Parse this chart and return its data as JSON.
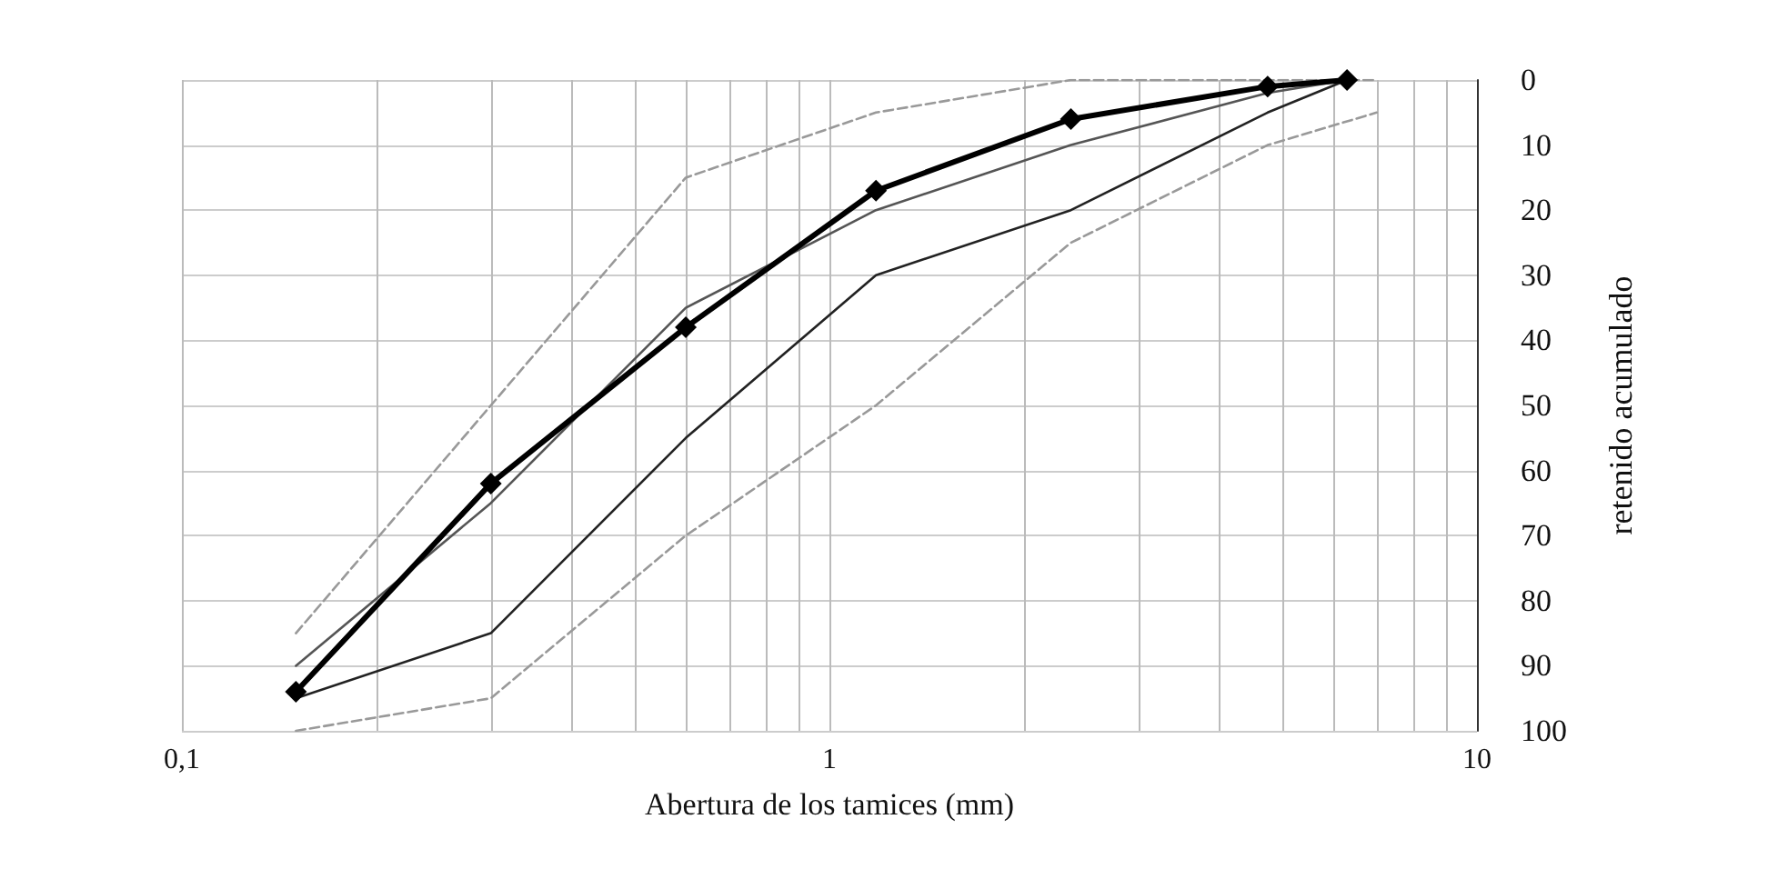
{
  "chart_data": {
    "type": "line",
    "xlabel": "Abertura de los tamices (mm)",
    "ylabel": "retenido acumulado",
    "log": "x",
    "grid": true,
    "xlim": [
      0.1,
      10
    ],
    "xticks": [
      {
        "value": 0.1,
        "label": "0,1"
      },
      {
        "value": 0.2,
        "label": null
      },
      {
        "value": 0.3,
        "label": null
      },
      {
        "value": 0.4,
        "label": null
      },
      {
        "value": 0.5,
        "label": null
      },
      {
        "value": 0.6,
        "label": null
      },
      {
        "value": 0.7,
        "label": null
      },
      {
        "value": 0.8,
        "label": null
      },
      {
        "value": 0.9,
        "label": null
      },
      1,
      {
        "value": 2,
        "label": null
      },
      {
        "value": 3,
        "label": null
      },
      {
        "value": 4,
        "label": null
      },
      {
        "value": 5,
        "label": null
      },
      {
        "value": 6,
        "label": null
      },
      {
        "value": 7,
        "label": null
      },
      {
        "value": 8,
        "label": null
      },
      {
        "value": 9,
        "label": null
      },
      10
    ],
    "ylim": [
      100,
      0
    ],
    "yticks": [
      0,
      10,
      20,
      30,
      40,
      50,
      60,
      70,
      80,
      90,
      100
    ],
    "series": [
      {
        "color": "#999999",
        "line_style": "dashed",
        "marker": "none",
        "x": [
          0.15,
          0.3,
          0.6,
          1.18,
          2.36,
          4.75,
          7
        ],
        "values": [
          85,
          50,
          15,
          5,
          0,
          0,
          0
        ]
      },
      {
        "color": "#999999",
        "line_style": "dashed",
        "marker": "none",
        "x": [
          0.15,
          0.3,
          0.6,
          1.18,
          2.36,
          4.75,
          7
        ],
        "values": [
          100,
          95,
          70,
          50,
          25,
          10,
          5
        ]
      },
      {
        "color": "#555555",
        "line_style": "solid",
        "marker": "none",
        "x": [
          0.15,
          0.3,
          0.6,
          1.18,
          2.36,
          4.75,
          6.3
        ],
        "values": [
          90,
          65,
          35,
          20,
          10,
          2,
          0
        ]
      },
      {
        "color": "#222222",
        "line_style": "solid",
        "marker": "none",
        "x": [
          0.15,
          0.3,
          0.6,
          1.18,
          2.36,
          4.75,
          6.3
        ],
        "values": [
          95,
          85,
          55,
          30,
          20,
          5,
          0
        ]
      },
      {
        "color": "#000000",
        "line_style": "solid",
        "marker": "diamond",
        "x": [
          0.15,
          0.3,
          0.6,
          1.18,
          2.36,
          4.75,
          6.3
        ],
        "values": [
          94,
          62,
          38,
          17,
          6,
          1,
          0
        ]
      }
    ]
  }
}
